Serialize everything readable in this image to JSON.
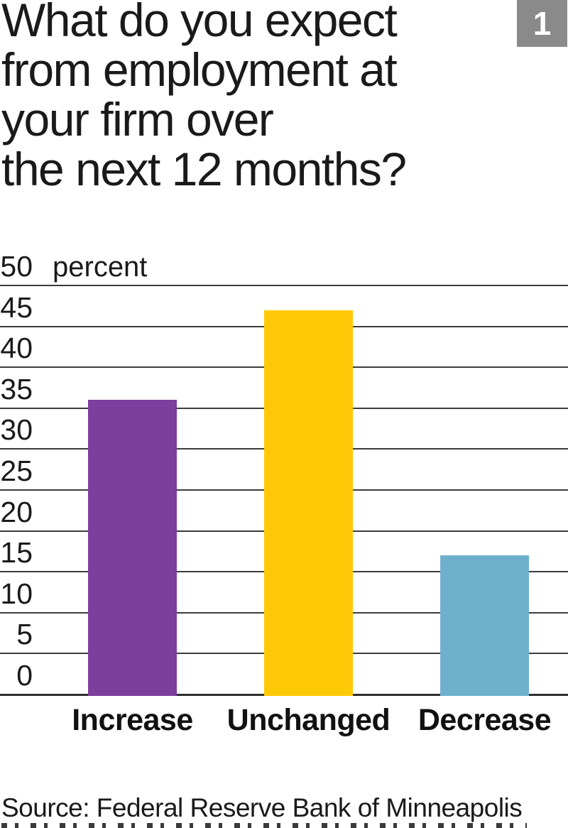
{
  "figure_badge": {
    "label": "1",
    "color": "#8A8A8A"
  },
  "title": {
    "lines": [
      "What do you expect",
      "from employment at",
      "your firm over",
      "the next 12 months?"
    ]
  },
  "chart_data": {
    "type": "bar",
    "title": "What do you expect from employment at your firm over the next 12 months?",
    "categories": [
      "Increase",
      "Unchanged",
      "Decrease"
    ],
    "values": [
      36,
      47,
      17
    ],
    "bar_colors": [
      "#7B3F9C",
      "#FFC907",
      "#6FB1CD"
    ],
    "xlabel": "",
    "ylabel": "percent",
    "ylim": [
      0,
      50
    ],
    "yticks": [
      0,
      5,
      10,
      15,
      20,
      25,
      30,
      35,
      40,
      45,
      50
    ],
    "grid": true,
    "gridline_color": "#3C3C3C",
    "legend": "none"
  },
  "source": "Source: Federal Reserve Bank of Minneapolis"
}
